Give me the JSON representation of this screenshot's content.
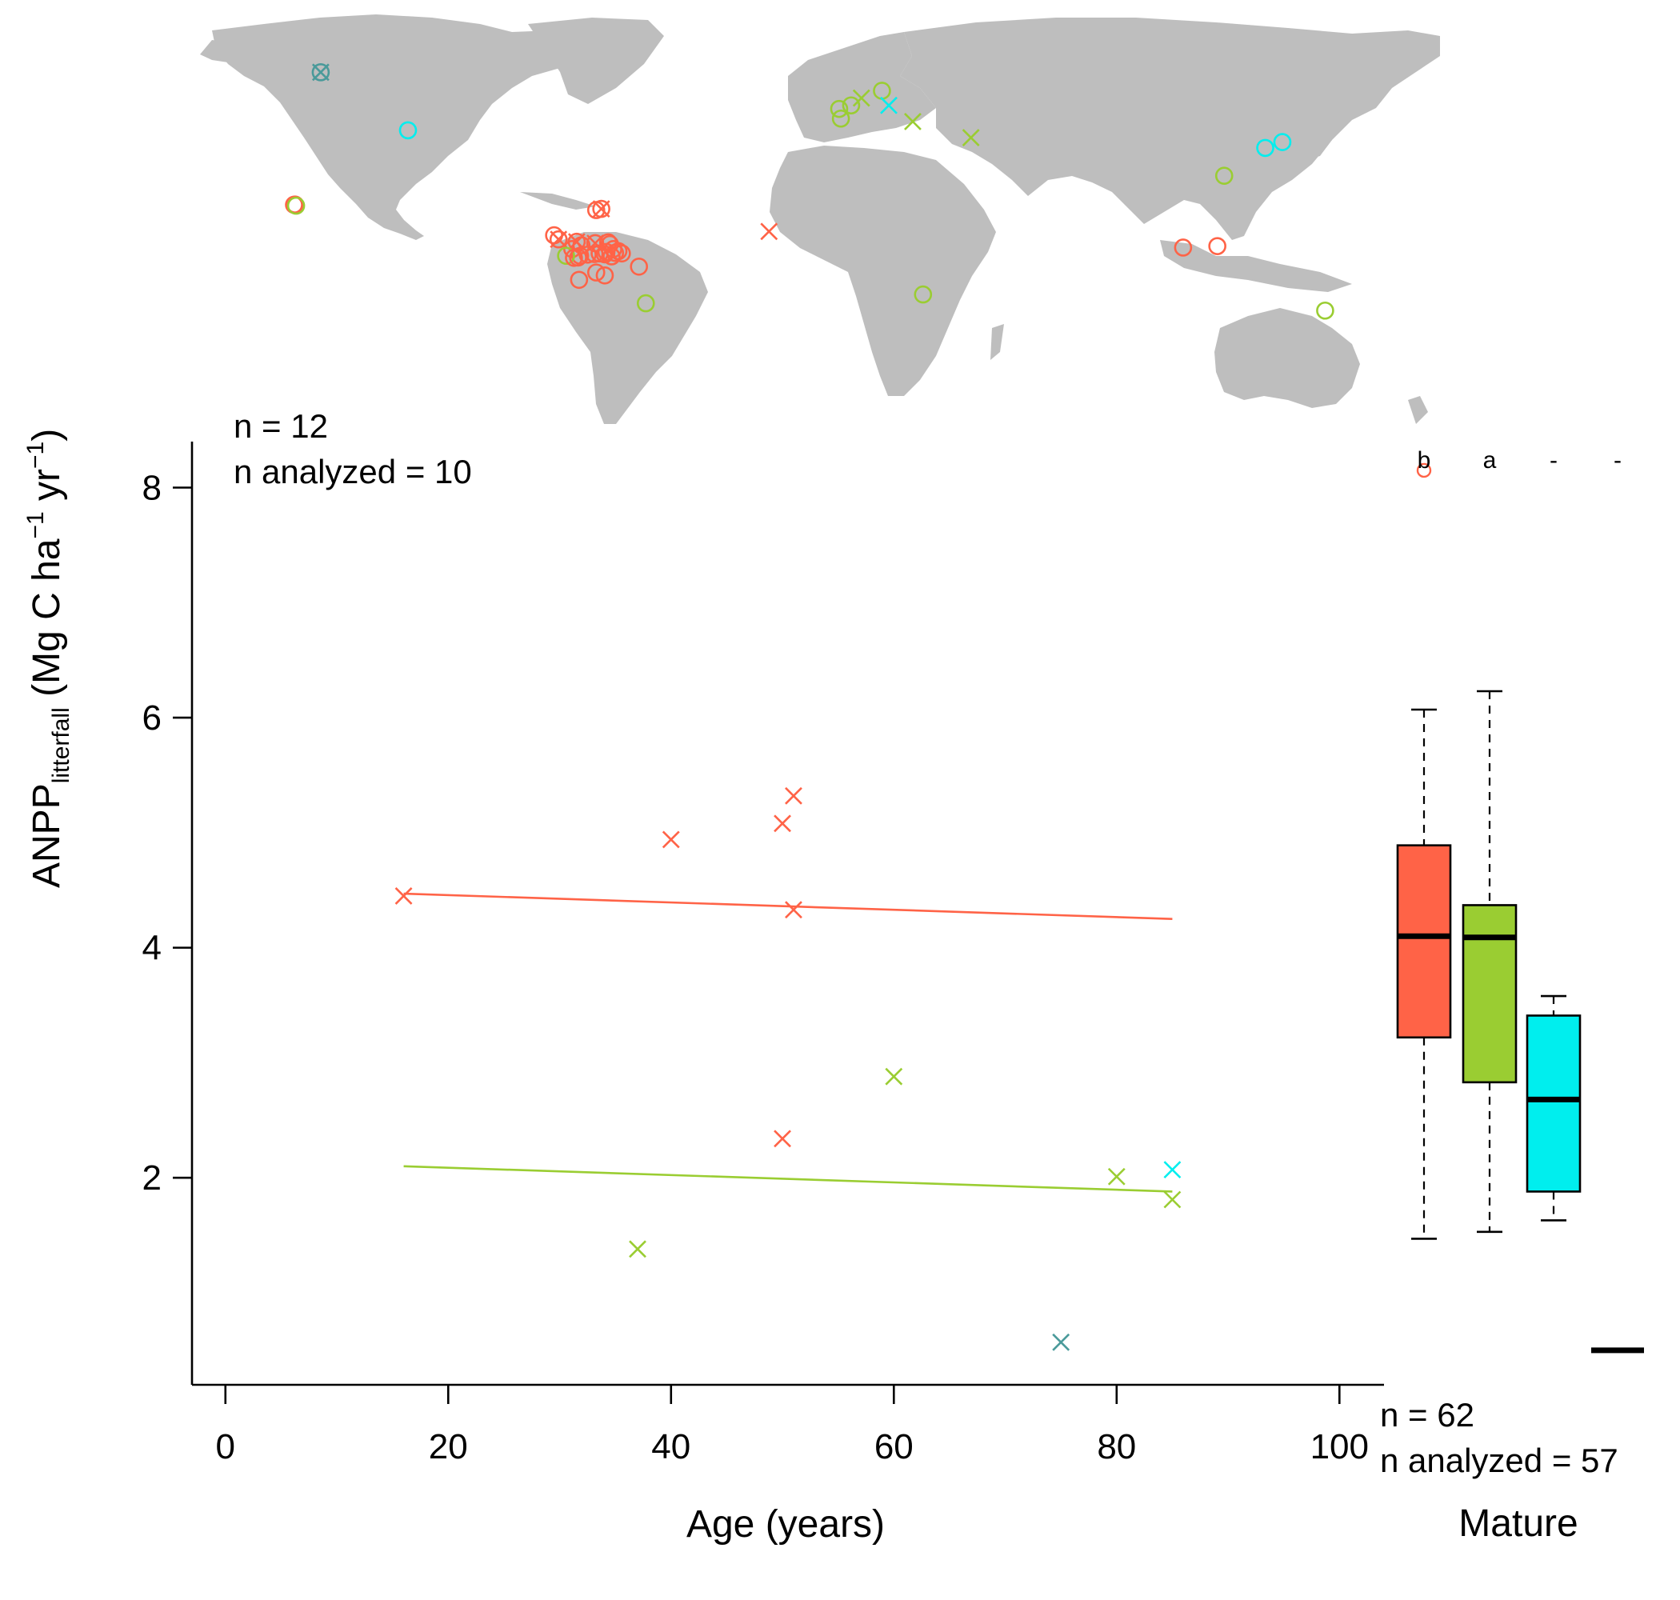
{
  "colors": {
    "tropical": "#ff6347",
    "temperate_broadleaf": "#9acd32",
    "temperate_needleleaf": "#00eeee",
    "boreal": "#4a9a9a",
    "land": "#bebebe",
    "axis": "#000000"
  },
  "annotations": {
    "young_n": "n = 12",
    "young_n_analyzed": "n analyzed = 10",
    "mature_n": "n = 62",
    "mature_n_analyzed": "n analyzed = 57"
  },
  "chart_data": [
    {
      "type": "scatter",
      "xlabel": "Age (years)",
      "ylabel_main": "ANPP",
      "ylabel_sub": "litterfall",
      "ylabel_units_pre": " (Mg C ha",
      "ylabel_units_mid": " yr",
      "ylabel_units_post": ")",
      "ylabel_sup": "−1",
      "xlim": [
        -3,
        104
      ],
      "ylim": [
        0.2,
        8.4
      ],
      "xticks": [
        0,
        20,
        40,
        60,
        80,
        100
      ],
      "yticks": [
        2,
        4,
        6,
        8
      ],
      "grid": false,
      "series": [
        {
          "color_key": "tropical",
          "marker": "x",
          "points": [
            [
              16,
              4.45
            ],
            [
              40,
              4.94
            ],
            [
              50,
              5.08
            ],
            [
              51,
              5.32
            ],
            [
              51,
              4.33
            ],
            [
              50,
              2.34
            ]
          ],
          "fit": [
            [
              16,
              4.47
            ],
            [
              85,
              4.25
            ]
          ]
        },
        {
          "color_key": "temperate_broadleaf",
          "marker": "x",
          "points": [
            [
              37,
              1.38
            ],
            [
              60,
              2.88
            ],
            [
              80,
              2.01
            ],
            [
              85,
              1.81
            ]
          ],
          "fit": [
            [
              16,
              2.1
            ],
            [
              85,
              1.88
            ]
          ]
        },
        {
          "color_key": "temperate_needleleaf",
          "marker": "x",
          "points": [
            [
              85,
              2.07
            ]
          ]
        },
        {
          "color_key": "boreal",
          "marker": "x",
          "points": [
            [
              75,
              0.57
            ]
          ]
        }
      ]
    },
    {
      "type": "box",
      "category": "Mature",
      "ylim": [
        0.2,
        8.4
      ],
      "group_letters": [
        "b",
        "a",
        "-",
        "-"
      ],
      "boxes": [
        {
          "color_key": "tropical",
          "whisker_low": 1.47,
          "q1": 3.22,
          "median": 4.1,
          "q3": 4.89,
          "whisker_high": 6.07,
          "outliers": [
            8.15
          ]
        },
        {
          "color_key": "temperate_broadleaf",
          "whisker_low": 1.53,
          "q1": 2.83,
          "median": 4.09,
          "q3": 4.37,
          "whisker_high": 6.23,
          "outliers": []
        },
        {
          "color_key": "temperate_needleleaf",
          "whisker_low": 1.63,
          "q1": 1.88,
          "median": 2.68,
          "q3": 3.41,
          "whisker_high": 3.58,
          "outliers": []
        },
        {
          "color_key": "boreal",
          "whisker_low": 0.5,
          "q1": 0.5,
          "median": 0.5,
          "q3": 0.5,
          "whisker_high": 0.5,
          "outliers": []
        }
      ]
    }
  ],
  "map_sites": {
    "note_units": "longitude, latitude in degrees",
    "sites": [
      {
        "lon": -155.8,
        "lat": 19.6,
        "color_key": "tropical",
        "marker": "o"
      },
      {
        "lon": -155.5,
        "lat": 19.7,
        "color_key": "tropical",
        "marker": "o"
      },
      {
        "lon": -155.2,
        "lat": 19.3,
        "color_key": "temperate_broadleaf",
        "marker": "o"
      },
      {
        "lon": -148.0,
        "lat": 64.8,
        "color_key": "boreal",
        "marker": "ox"
      },
      {
        "lon": -122.5,
        "lat": 45.0,
        "color_key": "temperate_needleleaf",
        "marker": "o"
      },
      {
        "lon": -66.0,
        "lat": 18.2,
        "color_key": "tropical",
        "marker": "ox"
      },
      {
        "lon": -67.5,
        "lat": 17.8,
        "color_key": "tropical",
        "marker": "o"
      },
      {
        "lon": -79.8,
        "lat": 9.2,
        "color_key": "tropical",
        "marker": "o"
      },
      {
        "lon": -78.5,
        "lat": 7.8,
        "color_key": "tropical",
        "marker": "ox"
      },
      {
        "lon": -73.2,
        "lat": 7.0,
        "color_key": "tropical",
        "marker": "ox"
      },
      {
        "lon": -71.8,
        "lat": 5.8,
        "color_key": "tropical",
        "marker": "o"
      },
      {
        "lon": -74.5,
        "lat": 4.5,
        "color_key": "tropical",
        "marker": "o"
      },
      {
        "lon": -67.8,
        "lat": 6.5,
        "color_key": "tropical",
        "marker": "ox"
      },
      {
        "lon": -64.0,
        "lat": 6.8,
        "color_key": "tropical",
        "marker": "o"
      },
      {
        "lon": -63.5,
        "lat": 6.2,
        "color_key": "tropical",
        "marker": "o"
      },
      {
        "lon": -62.5,
        "lat": 4.5,
        "color_key": "tropical",
        "marker": "o"
      },
      {
        "lon": -61.0,
        "lat": 3.8,
        "color_key": "tropical",
        "marker": "o"
      },
      {
        "lon": -64.5,
        "lat": 3.5,
        "color_key": "tropical",
        "marker": "o"
      },
      {
        "lon": -66.5,
        "lat": 3.0,
        "color_key": "tropical",
        "marker": "o"
      },
      {
        "lon": -68.0,
        "lat": 2.8,
        "color_key": "tropical",
        "marker": "o"
      },
      {
        "lon": -70.0,
        "lat": 2.6,
        "color_key": "tropical",
        "marker": "o"
      },
      {
        "lon": -72.2,
        "lat": 2.2,
        "color_key": "tropical",
        "marker": "o"
      },
      {
        "lon": -76.3,
        "lat": 2.2,
        "color_key": "temperate_broadleaf",
        "marker": "o"
      },
      {
        "lon": -74.0,
        "lat": 1.5,
        "color_key": "tropical",
        "marker": "o"
      },
      {
        "lon": -72.8,
        "lat": 1.6,
        "color_key": "tropical",
        "marker": "o"
      },
      {
        "lon": -63.0,
        "lat": 2.0,
        "color_key": "tropical",
        "marker": "o"
      },
      {
        "lon": -65.0,
        "lat": 2.7,
        "color_key": "tropical",
        "marker": "o"
      },
      {
        "lon": -62.0,
        "lat": 3.2,
        "color_key": "tropical",
        "marker": "o"
      },
      {
        "lon": -60.0,
        "lat": 3.0,
        "color_key": "tropical",
        "marker": "o"
      },
      {
        "lon": -72.5,
        "lat": -6.0,
        "color_key": "tropical",
        "marker": "o"
      },
      {
        "lon": -67.5,
        "lat": -3.5,
        "color_key": "tropical",
        "marker": "o"
      },
      {
        "lon": -65.0,
        "lat": -4.5,
        "color_key": "tropical",
        "marker": "o"
      },
      {
        "lon": -55.0,
        "lat": -1.5,
        "color_key": "tropical",
        "marker": "o"
      },
      {
        "lon": -53.0,
        "lat": -14.0,
        "color_key": "temperate_broadleaf",
        "marker": "o"
      },
      {
        "lon": 3.5,
        "lat": 52.3,
        "color_key": "temperate_broadleaf",
        "marker": "o"
      },
      {
        "lon": 7.0,
        "lat": 53.5,
        "color_key": "temperate_broadleaf",
        "marker": "o"
      },
      {
        "lon": 4.0,
        "lat": 49.0,
        "color_key": "temperate_broadleaf",
        "marker": "o"
      },
      {
        "lon": 10.0,
        "lat": 56.0,
        "color_key": "temperate_broadleaf",
        "marker": "x"
      },
      {
        "lon": 16.0,
        "lat": 58.5,
        "color_key": "temperate_broadleaf",
        "marker": "o"
      },
      {
        "lon": 18.0,
        "lat": 53.5,
        "color_key": "temperate_needleleaf",
        "marker": "x"
      },
      {
        "lon": 25.0,
        "lat": 48.0,
        "color_key": "temperate_broadleaf",
        "marker": "x"
      },
      {
        "lon": 42.0,
        "lat": 42.5,
        "color_key": "temperate_broadleaf",
        "marker": "x"
      },
      {
        "lon": -17.0,
        "lat": 10.5,
        "color_key": "tropical",
        "marker": "x"
      },
      {
        "lon": 28.0,
        "lat": -11.0,
        "color_key": "temperate_broadleaf",
        "marker": "o"
      },
      {
        "lon": 116.0,
        "lat": 29.5,
        "color_key": "temperate_broadleaf",
        "marker": "o"
      },
      {
        "lon": 128.0,
        "lat": 39.0,
        "color_key": "temperate_needleleaf",
        "marker": "o"
      },
      {
        "lon": 133.0,
        "lat": 41.0,
        "color_key": "temperate_needleleaf",
        "marker": "o"
      },
      {
        "lon": 104.0,
        "lat": 5.0,
        "color_key": "tropical",
        "marker": "o"
      },
      {
        "lon": 114.0,
        "lat": 5.5,
        "color_key": "tropical",
        "marker": "o"
      },
      {
        "lon": 145.5,
        "lat": -16.5,
        "color_key": "temperate_broadleaf",
        "marker": "o"
      }
    ]
  }
}
